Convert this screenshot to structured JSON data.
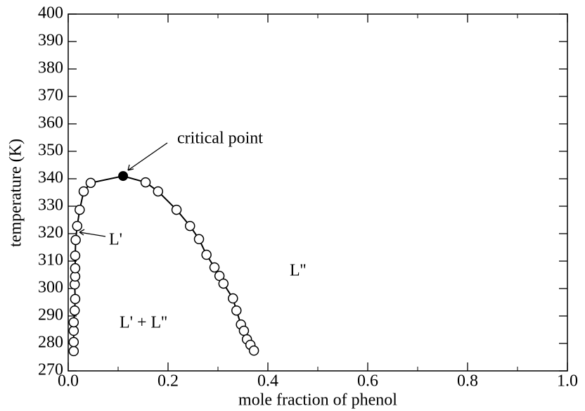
{
  "chart_data": {
    "type": "line",
    "xlabel": "mole fraction of phenol",
    "ylabel": "temperature (K)",
    "xlim": [
      0,
      1
    ],
    "ylim": [
      270,
      400
    ],
    "xticks": [
      {
        "value": 0,
        "label": "0.0"
      },
      0.2,
      0.4,
      0.6,
      0.8,
      {
        "value": 1,
        "label": "1.0"
      }
    ],
    "yticks": [
      270,
      280,
      290,
      300,
      310,
      320,
      330,
      340,
      350,
      360,
      370,
      380,
      390,
      400
    ],
    "color": "#000000",
    "series": [
      {
        "x": [
          0.011,
          0.011,
          0.011,
          0.011,
          0.013,
          0.014,
          0.013,
          0.014,
          0.014,
          0.014,
          0.015,
          0.018,
          0.023,
          0.031,
          0.045,
          0.155,
          0.18,
          0.217,
          0.244,
          0.262,
          0.277,
          0.293,
          0.303,
          0.311,
          0.33,
          0.337,
          0.346,
          0.352,
          0.358,
          0.365,
          0.372
        ],
        "y": [
          277.2,
          280.5,
          284.6,
          287.7,
          292,
          296.2,
          301.5,
          304.4,
          307.4,
          312,
          317.7,
          322.8,
          328.7,
          335.4,
          338.5,
          338.7,
          335.4,
          328.7,
          322.8,
          318,
          312.3,
          307.7,
          304.6,
          301.8,
          296.4,
          292,
          286.9,
          284.6,
          281.5,
          279.5,
          277.4
        ]
      }
    ],
    "critical_point": {
      "x": 0.11,
      "y": 341,
      "label": "critical point"
    },
    "region_labels": [
      "L'",
      "L''",
      "L' + L''"
    ]
  }
}
